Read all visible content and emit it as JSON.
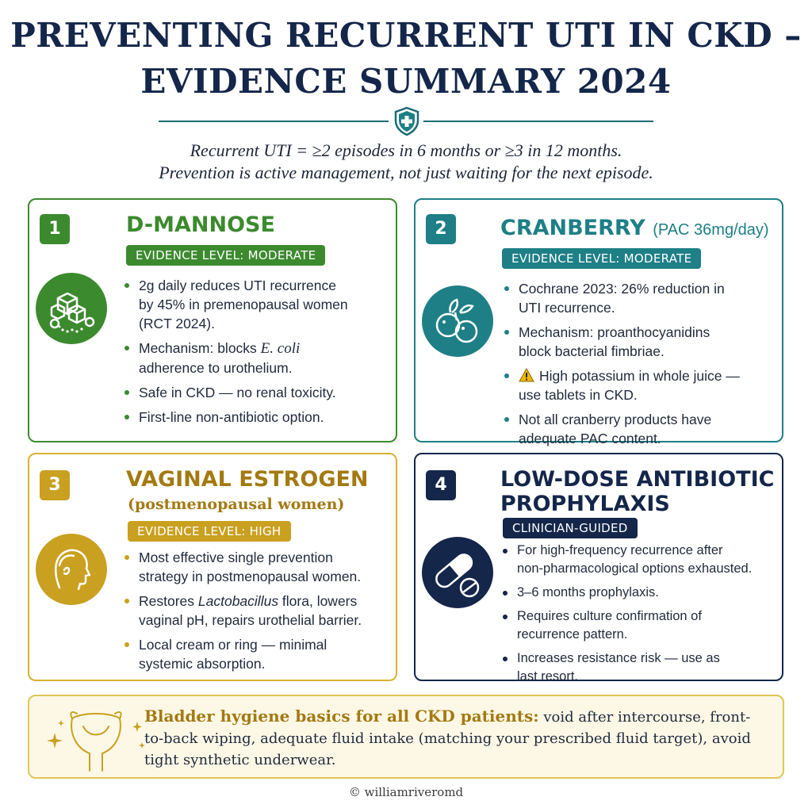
{
  "header": {
    "title_line1": "PREVENTING RECURRENT UTI IN CKD –",
    "title_line2": "EVIDENCE SUMMARY 2024",
    "subtitle_line1": "Recurrent UTI = ≥2 episodes in 6 months or ≥3 in 12 months.",
    "subtitle_line2": "Prevention is active management, not just waiting for the next episode."
  },
  "colors": {
    "green": "#3c8a2e",
    "teal": "#1e7f86",
    "gold": "#c9a020",
    "navy": "#14264a"
  },
  "icons": {
    "header": "shield-cross-icon",
    "card1": "sugar-cube-icon",
    "card2": "cranberry-icon",
    "card3": "woman-profile-icon",
    "card4": "pill-capsule-icon",
    "footer_box": "bladder-icon"
  },
  "cards": [
    {
      "number": "1",
      "title": "D-MANNOSE",
      "badge": "EVIDENCE LEVEL: MODERATE",
      "bullets": [
        {
          "line1": "2g daily reduces UTI recurrence",
          "line2": "by 45% in premenopausal women",
          "line3": "(RCT 2024)."
        },
        {
          "pre": "Mechanism: blocks ",
          "italic": "E. coli",
          "post": "",
          "line2": "adherence to urothelium."
        },
        {
          "text": "Safe in CKD — no renal toxicity."
        },
        {
          "text": "First-line non-antibiotic option."
        }
      ]
    },
    {
      "number": "2",
      "title": "CRANBERRY",
      "title_suffix": "(PAC 36mg/day)",
      "badge": "EVIDENCE LEVEL: MODERATE",
      "bullets": [
        {
          "line1": "Cochrane 2023: 26% reduction in",
          "line2": "UTI recurrence."
        },
        {
          "line1": "Mechanism: proanthocyanidins",
          "line2": "block bacterial fimbriae."
        },
        {
          "line1": "High potassium in whole juice —",
          "line2": "use tablets in CKD."
        },
        {
          "line1": "Not all cranberry products have",
          "line2": "adequate PAC content."
        }
      ]
    },
    {
      "number": "3",
      "title": "VAGINAL ESTROGEN",
      "subtitle": "(postmenopausal women)",
      "badge": "EVIDENCE LEVEL: HIGH",
      "bullets": [
        {
          "line1": "Most effective single prevention",
          "line2": "strategy in postmenopausal women."
        },
        {
          "pre": "Restores ",
          "italic": "Lactobacillus",
          "post": " flora, lowers",
          "line2": "vaginal pH, repairs urothelial barrier."
        },
        {
          "line1": "Local cream or ring — minimal",
          "line2": "systemic absorption."
        }
      ]
    },
    {
      "number": "4",
      "title_line1": "LOW-DOSE ANTIBIOTIC",
      "title_line2": "PROPHYLAXIS",
      "badge": "CLINICIAN-GUIDED",
      "bullets": [
        {
          "line1": "For high-frequency recurrence after",
          "line2": "non-pharmacological options exhausted."
        },
        {
          "text": "3–6 months prophylaxis."
        },
        {
          "line1": "Requires culture confirmation of",
          "line2": "recurrence pattern."
        },
        {
          "line1": "Increases resistance risk — use as",
          "line2": "last resort."
        }
      ]
    }
  ],
  "hygiene": {
    "heading": "Bladder hygiene basics for all CKD patients:",
    "text": "void after intercourse, front-to-back wiping, adequate fluid intake (matching your prescribed fluid target), avoid tight synthetic underwear."
  },
  "footer": {
    "credit": "© williamriveromd"
  }
}
